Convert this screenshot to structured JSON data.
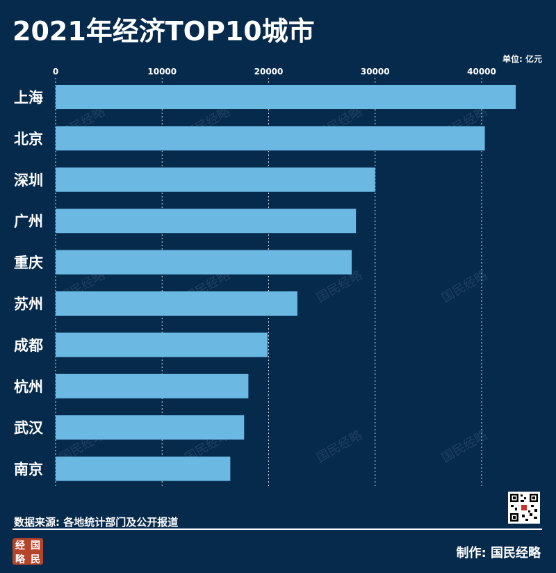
{
  "header": {
    "title": "2021年经济TOP10城市",
    "unit_label": "单位: 亿元"
  },
  "chart_data": {
    "type": "bar",
    "orientation": "horizontal",
    "categories": [
      "上海",
      "北京",
      "深圳",
      "广州",
      "重庆",
      "苏州",
      "成都",
      "杭州",
      "武汉",
      "南京"
    ],
    "values": [
      43200,
      40300,
      30000,
      28200,
      27800,
      22700,
      19900,
      18100,
      17700,
      16400
    ],
    "xlim": [
      0,
      45000
    ],
    "xticks": [
      0,
      10000,
      20000,
      30000,
      40000
    ],
    "xtick_labels": [
      "0",
      "10000",
      "20000",
      "30000",
      "40000"
    ],
    "grid": true,
    "bar_color": "#6bb8e3"
  },
  "watermark": {
    "text": "国民经略"
  },
  "footer": {
    "source": "数据来源: 各地统计部门及公开报道",
    "maker": "制作: 国民经略",
    "logo_chars": [
      "经",
      "国",
      "略",
      "民"
    ]
  },
  "colors": {
    "background": "#062a4c",
    "bar": "#6bb8e3",
    "text": "#ffffff"
  }
}
